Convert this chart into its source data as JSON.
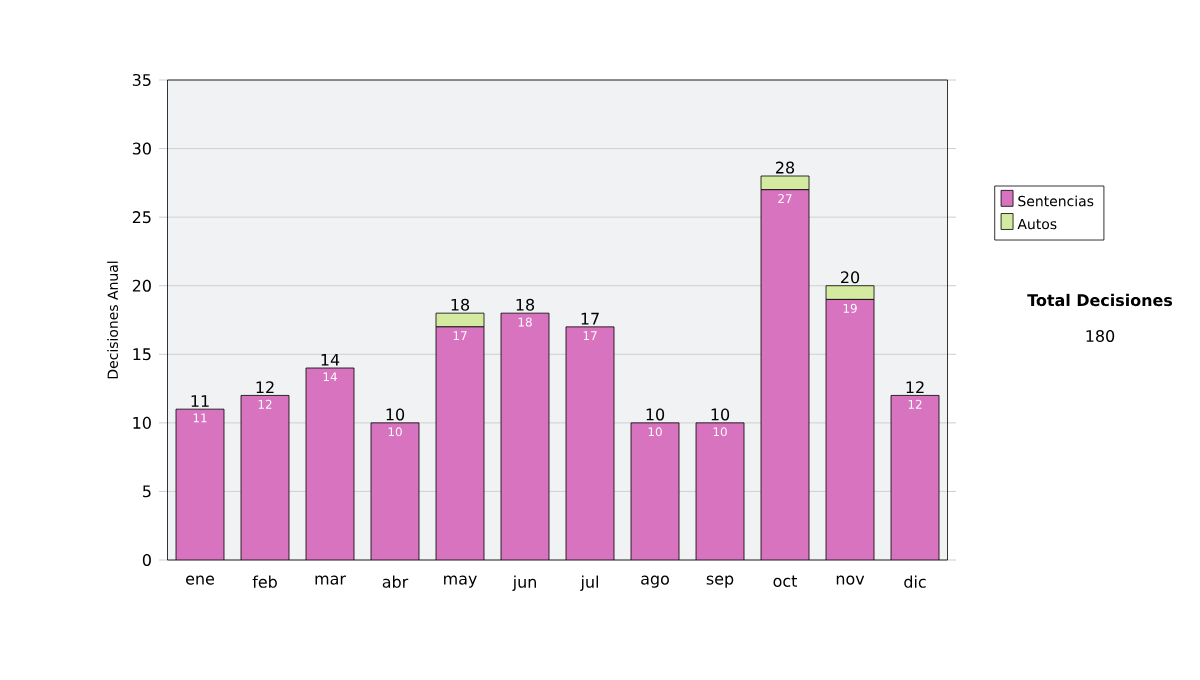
{
  "chart_data": {
    "type": "bar",
    "stacked": true,
    "ylabel": "Decisiones Anual",
    "categories": [
      "ene",
      "feb",
      "mar",
      "abr",
      "may",
      "jun",
      "jul",
      "ago",
      "sep",
      "oct",
      "nov",
      "dic"
    ],
    "series": [
      {
        "name": "Sentencias",
        "color": "#d873c0",
        "values": [
          11,
          12,
          14,
          10,
          17,
          18,
          17,
          10,
          10,
          27,
          19,
          12
        ],
        "value_labels": [
          "11",
          "12",
          "14",
          "10",
          "17",
          "18",
          "17",
          "10",
          "10",
          "27",
          "19",
          "12"
        ]
      },
      {
        "name": "Autos",
        "color": "#d4eaa0",
        "values": [
          0,
          0,
          0,
          0,
          1,
          0,
          0,
          0,
          0,
          1,
          1,
          0
        ]
      }
    ],
    "totals": [
      "11",
      "12",
      "14",
      "10",
      "18",
      "18",
      "17",
      "10",
      "10",
      "28",
      "20",
      "12"
    ],
    "ylim": [
      0,
      35
    ],
    "yticks": [
      0,
      5,
      10,
      15,
      20,
      25,
      30,
      35
    ],
    "grid": "y",
    "legend": "right",
    "annotations": [
      "Total Decisiones",
      "180"
    ]
  }
}
